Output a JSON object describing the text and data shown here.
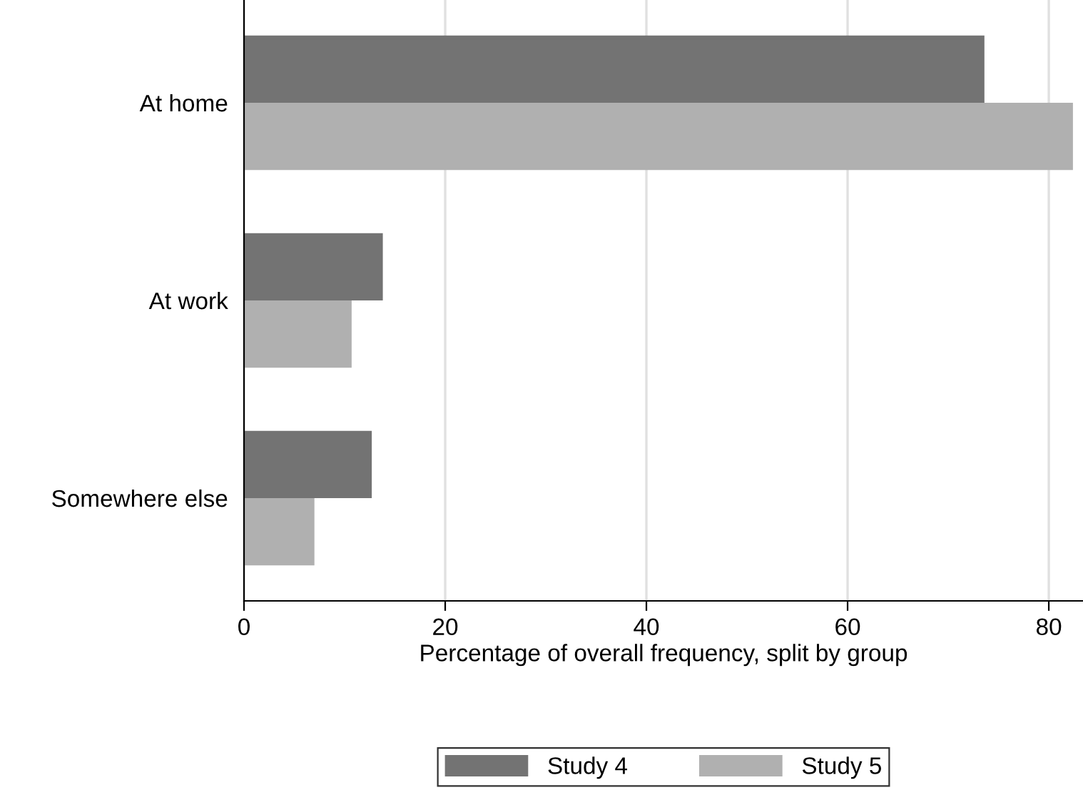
{
  "chart_data": {
    "type": "bar",
    "orientation": "horizontal",
    "xlabel": "Percentage of overall frequency, split by group",
    "categories": [
      "At home",
      "At work",
      "Somewhere else"
    ],
    "series": [
      {
        "name": "Study 4",
        "color": "#737373",
        "values": [
          73.6,
          13.8,
          12.7
        ]
      },
      {
        "name": "Study 5",
        "color": "#b0b0b0",
        "values": [
          82.4,
          10.7,
          7.0
        ]
      }
    ],
    "xlim": [
      0,
      83.4
    ],
    "xticks": [
      0,
      20,
      40,
      60,
      80
    ],
    "grid": "x",
    "legend": "bottom"
  }
}
